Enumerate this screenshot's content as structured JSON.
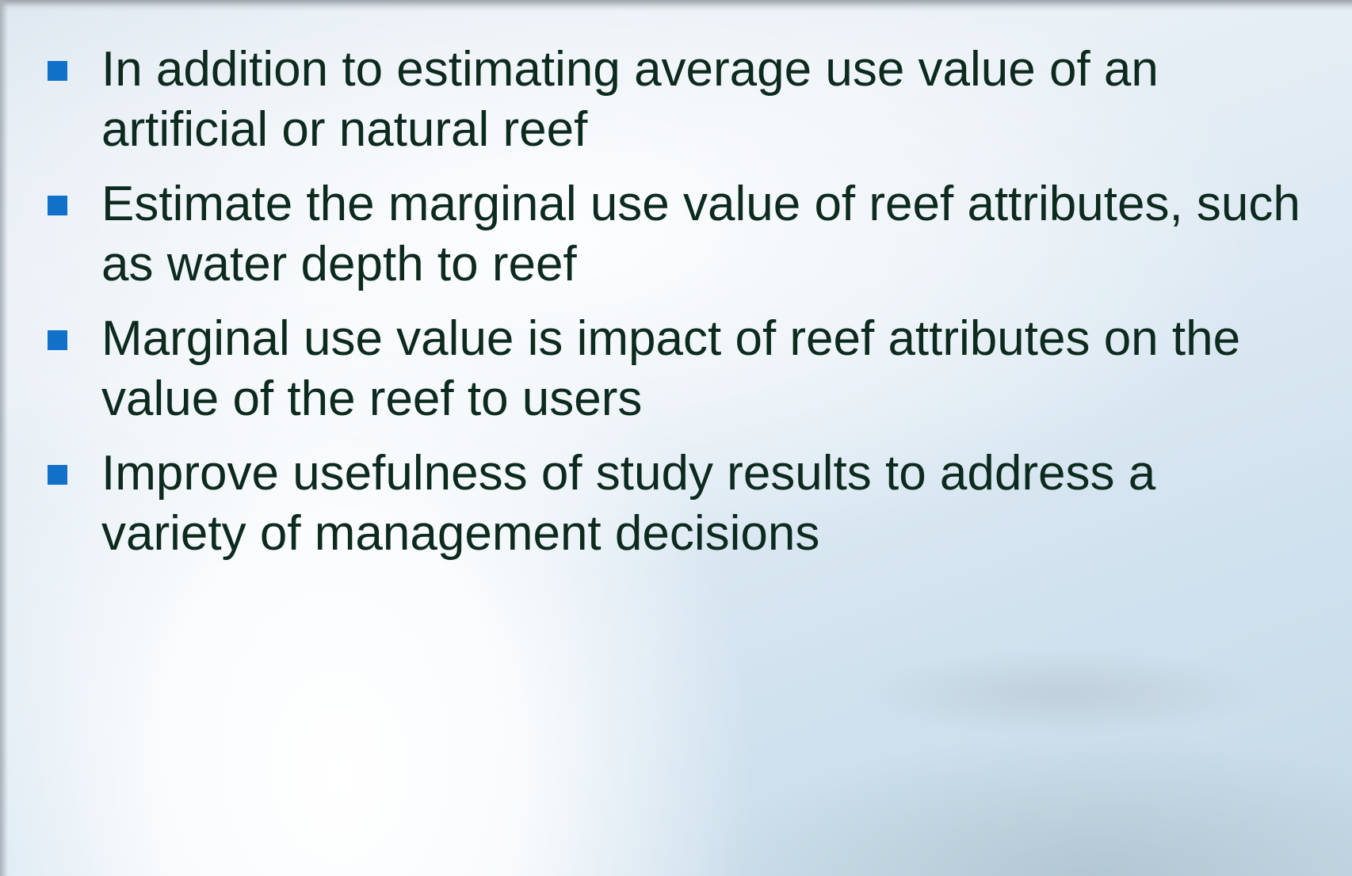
{
  "bullets": [
    "In addition to estimating average use value of an artificial or natural reef",
    "Estimate the marginal use value of reef attributes, such as water depth to reef",
    "Marginal use value is impact of reef attributes on the value of the reef to users",
    "Improve usefulness of study results to address a variety of management decisions"
  ]
}
